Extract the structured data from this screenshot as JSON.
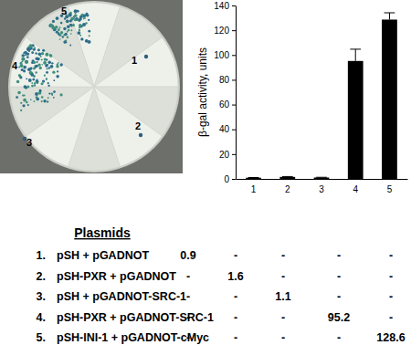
{
  "chart_data": {
    "type": "bar",
    "categories": [
      "1",
      "2",
      "3",
      "4",
      "5"
    ],
    "values": [
      0.9,
      1.6,
      1.1,
      95.2,
      128.6
    ],
    "errors": [
      0.2,
      0.3,
      0.2,
      9.5,
      5.5
    ],
    "color": "#000000",
    "y_label": "β-gal activity, units",
    "ylim": [
      0,
      140
    ],
    "yticks": [
      0,
      20,
      40,
      60,
      80,
      100,
      120,
      140
    ]
  },
  "plate": {
    "sectors": [
      {
        "label": "1"
      },
      {
        "label": "2"
      },
      {
        "label": "3"
      },
      {
        "label": "4"
      },
      {
        "label": "5"
      }
    ]
  },
  "table": {
    "title": "Plasmids",
    "rows": [
      {
        "number": "1.",
        "plasmids": "pSH + pGADNOT",
        "cells": [
          0.9,
          "-",
          "-",
          "-",
          "-"
        ]
      },
      {
        "number": "2.",
        "plasmids": "pSH-PXR + pGADNOT",
        "cells": [
          "-",
          1.6,
          "-",
          "-",
          "-"
        ]
      },
      {
        "number": "3.",
        "plasmids": "pSH + pGADNOT-SRC-1",
        "cells": [
          "-",
          "-",
          1.1,
          "-",
          "-"
        ]
      },
      {
        "number": "4.",
        "plasmids": "pSH-PXR + pGADNOT-SRC-1",
        "cells": [
          "-",
          "-",
          "-",
          95.2,
          "-"
        ]
      },
      {
        "number": "5.",
        "plasmids": "pSH-INI-1 + pGADNOT-cMyc",
        "cells": [
          "-",
          "-",
          "-",
          "-",
          128.6
        ]
      }
    ]
  }
}
